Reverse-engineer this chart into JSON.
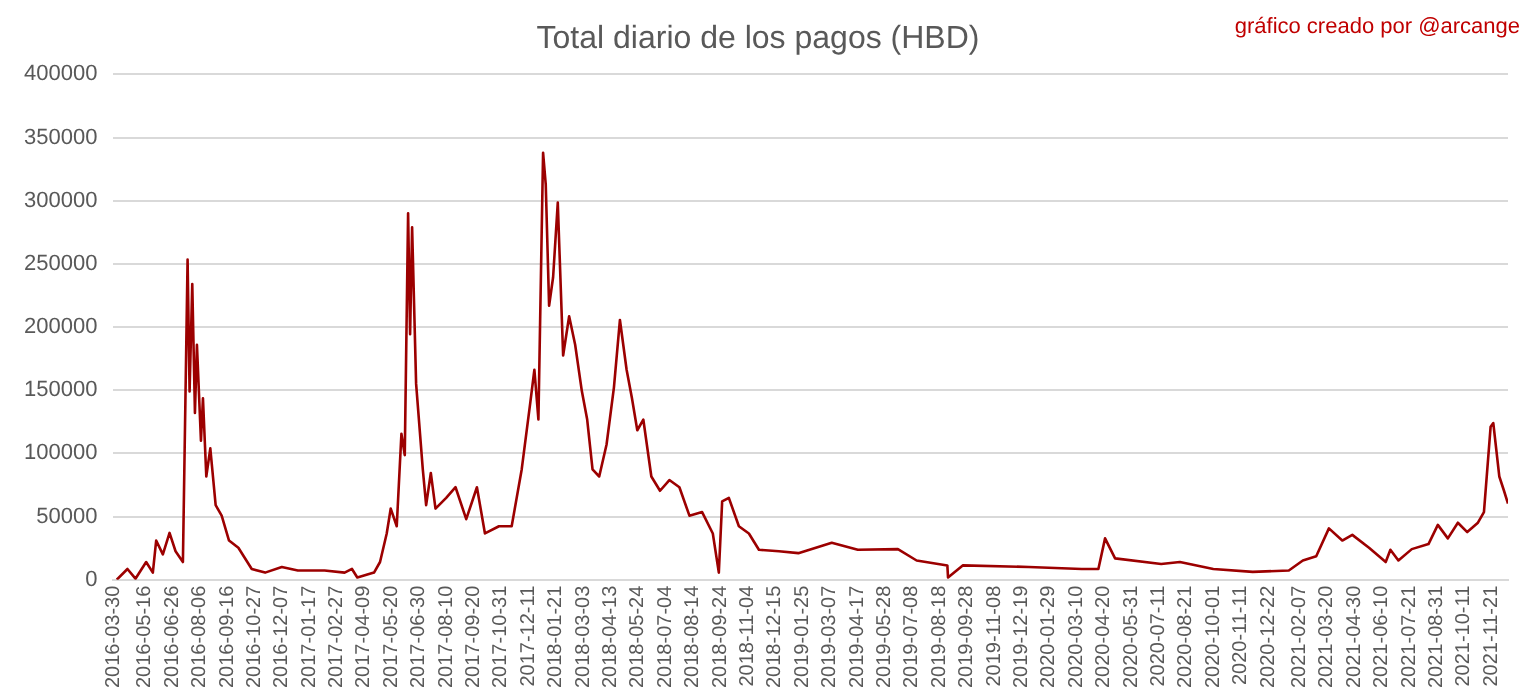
{
  "chart_data": {
    "type": "line",
    "title": "Total diario de los pagos (HBD)",
    "annotations": [
      "gráfico creado por @arcange"
    ],
    "x": [
      "2016-04-04",
      "2016-04-20",
      "2016-05-02",
      "2016-05-18",
      "2016-05-28",
      "2016-06-02",
      "2016-06-12",
      "2016-06-22",
      "2016-07-01",
      "2016-07-12",
      "2016-07-19",
      "2016-07-22",
      "2016-07-26",
      "2016-07-30",
      "2016-08-02",
      "2016-08-08",
      "2016-08-11",
      "2016-08-16",
      "2016-08-22",
      "2016-08-30",
      "2016-09-08",
      "2016-09-19",
      "2016-10-03",
      "2016-10-23",
      "2016-11-12",
      "2016-12-07",
      "2016-12-31",
      "2017-02-09",
      "2017-03-11",
      "2017-03-22",
      "2017-03-30",
      "2017-04-24",
      "2017-05-03",
      "2017-05-13",
      "2017-05-19",
      "2017-05-28",
      "2017-06-04",
      "2017-06-09",
      "2017-06-14",
      "2017-06-17",
      "2017-06-20",
      "2017-06-26",
      "2017-07-06",
      "2017-07-11",
      "2017-07-18",
      "2017-07-25",
      "2017-08-10",
      "2017-08-24",
      "2017-09-09",
      "2017-09-25",
      "2017-10-07",
      "2017-10-28",
      "2017-11-16",
      "2017-12-01",
      "2017-12-14",
      "2017-12-20",
      "2017-12-26",
      "2018-01-02",
      "2018-01-06",
      "2018-01-11",
      "2018-01-17",
      "2018-01-24",
      "2018-02-01",
      "2018-02-10",
      "2018-02-19",
      "2018-03-01",
      "2018-03-09",
      "2018-03-17",
      "2018-03-27",
      "2018-04-07",
      "2018-04-18",
      "2018-04-27",
      "2018-05-07",
      "2018-05-15",
      "2018-05-23",
      "2018-06-01",
      "2018-06-13",
      "2018-06-26",
      "2018-07-10",
      "2018-07-25",
      "2018-08-09",
      "2018-08-28",
      "2018-09-13",
      "2018-09-22",
      "2018-09-27",
      "2018-10-07",
      "2018-10-22",
      "2018-11-06",
      "2018-11-21",
      "2018-12-21",
      "2019-01-19",
      "2019-03-10",
      "2019-04-18",
      "2019-06-17",
      "2019-07-15",
      "2019-08-30",
      "2019-08-31",
      "2019-09-22",
      "2019-12-30",
      "2020-03-18",
      "2020-04-12",
      "2020-04-22",
      "2020-05-07",
      "2020-07-15",
      "2020-08-12",
      "2020-10-01",
      "2020-11-29",
      "2021-01-22",
      "2021-02-12",
      "2021-03-04",
      "2021-03-23",
      "2021-04-12",
      "2021-04-27",
      "2021-05-22",
      "2021-06-16",
      "2021-06-23",
      "2021-07-05",
      "2021-07-25",
      "2021-08-19",
      "2021-09-02",
      "2021-09-17",
      "2021-10-02",
      "2021-10-16",
      "2021-11-01",
      "2021-11-10",
      "2021-11-20",
      "2021-11-24",
      "2021-12-03",
      "2021-12-10",
      "2021-12-16"
    ],
    "series": [
      {
        "color": "#9c0000",
        "values": [
          0,
          8500,
          800,
          14000,
          5600,
          31000,
          20000,
          37000,
          22500,
          14000,
          253500,
          149000,
          234000,
          132000,
          186000,
          110000,
          143600,
          81700,
          104000,
          59000,
          50700,
          31000,
          25300,
          8500,
          5600,
          10000,
          7300,
          7300,
          5600,
          8500,
          1700,
          5600,
          14000,
          36600,
          56300,
          42300,
          115500,
          98600,
          290000,
          194400,
          279000,
          155000,
          87300,
          59000,
          84500,
          56300,
          64800,
          73200,
          47900,
          73200,
          36600,
          42300,
          42300,
          87300,
          140800,
          166200,
          126800,
          338000,
          312700,
          216900,
          239400,
          298600,
          177500,
          208500,
          186000,
          149300,
          126800,
          87300,
          81700,
          107000,
          152100,
          205600,
          166200,
          143700,
          118300,
          126800,
          81700,
          70400,
          78900,
          73200,
          50700,
          53500,
          36600,
          5600,
          62000,
          64800,
          42300,
          36600,
          23700,
          22500,
          21000,
          29300,
          23700,
          24200,
          15200,
          11300,
          1700,
          11300,
          10100,
          8500,
          8500,
          32700,
          16900,
          12400,
          14000,
          8500,
          6200,
          7300,
          15200,
          18600,
          40600,
          31000,
          35500,
          25300,
          14000,
          23700,
          15200,
          24200,
          28200,
          43400,
          32700,
          45100,
          37700,
          45100,
          53500,
          121100,
          124000,
          81700,
          70400,
          60300
        ]
      }
    ],
    "xlim": [
      "2016-03-30",
      "2021-12-16"
    ],
    "xticks": [
      "2016-03-30",
      "2016-05-16",
      "2016-06-26",
      "2016-08-06",
      "2016-09-16",
      "2016-10-27",
      "2016-12-07",
      "2017-01-17",
      "2017-02-27",
      "2017-04-09",
      "2017-05-20",
      "2017-06-30",
      "2017-08-10",
      "2017-09-20",
      "2017-10-31",
      "2017-12-11",
      "2018-01-21",
      "2018-03-03",
      "2018-04-13",
      "2018-05-24",
      "2018-07-04",
      "2018-08-14",
      "2018-09-24",
      "2018-11-04",
      "2018-12-15",
      "2019-01-25",
      "2019-03-07",
      "2019-04-17",
      "2019-05-28",
      "2019-07-08",
      "2019-08-18",
      "2019-09-28",
      "2019-11-08",
      "2019-12-19",
      "2020-01-29",
      "2020-03-10",
      "2020-04-20",
      "2020-05-31",
      "2020-07-11",
      "2020-08-21",
      "2020-10-01",
      "2020-11-11",
      "2020-12-22",
      "2021-02-07",
      "2021-03-20",
      "2021-04-30",
      "2021-06-10",
      "2021-07-21",
      "2021-08-31",
      "2021-10-11",
      "2021-11-21"
    ],
    "ylim": [
      0,
      400000
    ],
    "yticks": [
      0,
      50000,
      100000,
      150000,
      200000,
      250000,
      300000,
      350000,
      400000
    ],
    "grid": "y",
    "legend": false,
    "marker": "none",
    "line_style": "solid"
  }
}
